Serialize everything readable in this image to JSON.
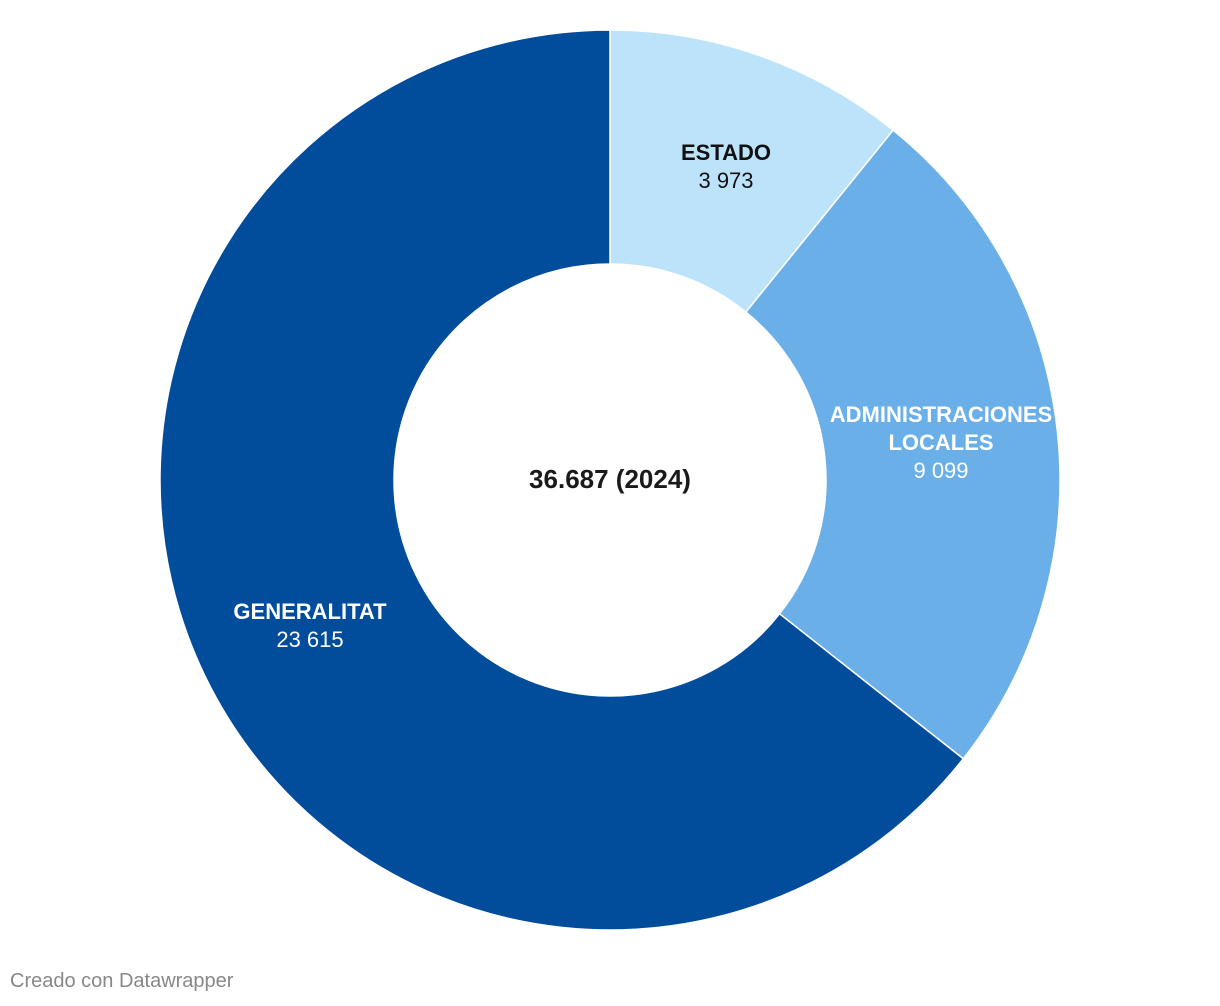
{
  "chart_data": {
    "type": "pie",
    "variant": "donut",
    "title": "",
    "center_label": "36.687 (2024)",
    "slices": [
      {
        "name": "ESTADO",
        "value": 3973,
        "value_label": "3 973",
        "color": "#bde3fb",
        "label_color": "#111111"
      },
      {
        "name": "ADMINISTRACIONES LOCALES",
        "name_lines": [
          "ADMINISTRACIONES",
          "LOCALES"
        ],
        "value": 9099,
        "value_label": "9 099",
        "color": "#6aafe8",
        "label_color": "#ffffff"
      },
      {
        "name": "GENERALITAT",
        "value": 23615,
        "value_label": "23 615",
        "color": "#014c9b",
        "label_color": "#ffffff"
      }
    ]
  },
  "footer": {
    "credit": "Creado con Datawrapper"
  }
}
